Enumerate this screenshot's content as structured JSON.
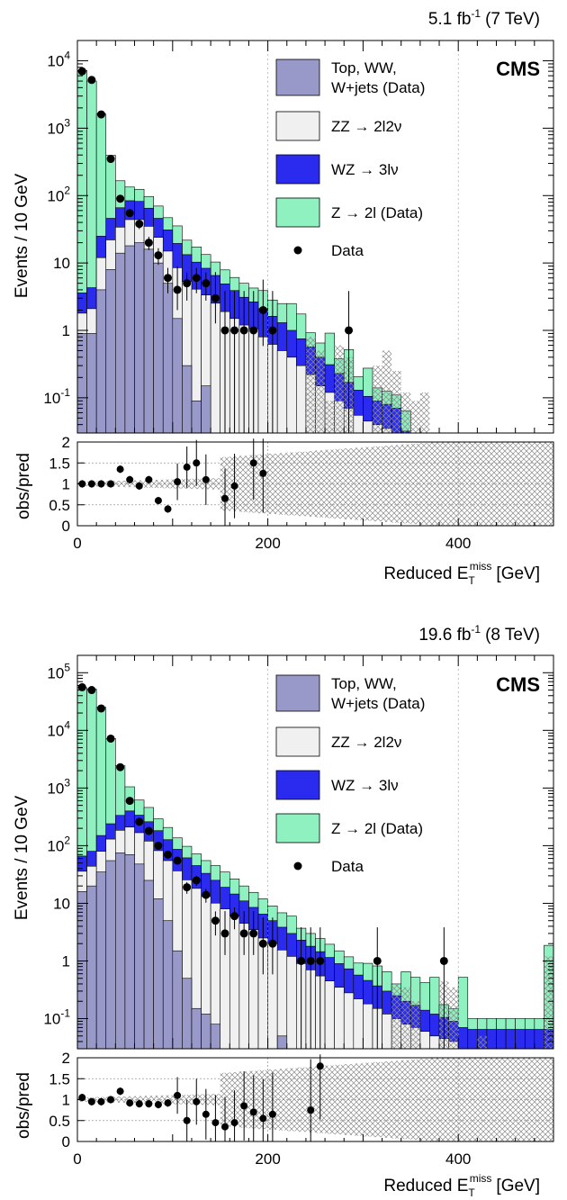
{
  "colors": {
    "top_ww_wjets": "#9999c9",
    "zz": "#f0f0f0",
    "wz": "#2b2bf0",
    "z_dy": "#8ff0c0",
    "data": "#000000",
    "hatch": "#8a8a8a",
    "grid": "#9a9a9a"
  },
  "chart_data": [
    {
      "type": "histogram-stack",
      "lumi_label": "5.1 fb",
      "lumi_exp": "-1",
      "energy_label": "(7 TeV)",
      "experiment": "CMS",
      "ylabel": "Events / 10 GeV",
      "ratio_ylabel": "obs/pred",
      "xlabel_main": "Reduced E",
      "xlabel_sub": "T",
      "xlabel_sup": "miss",
      "xlabel_unit": "[GeV]",
      "xlim": [
        0,
        500
      ],
      "ylim": [
        0.03,
        20000
      ],
      "ylog": true,
      "yticks": [
        {
          "v": 10000,
          "b": "10",
          "e": "4"
        },
        {
          "v": 1000,
          "b": "10",
          "e": "3"
        },
        {
          "v": 100,
          "b": "10",
          "e": "2"
        },
        {
          "v": 10,
          "b": "10",
          "e": ""
        },
        {
          "v": 1,
          "b": "1",
          "e": ""
        },
        {
          "v": 0.1,
          "b": "10",
          "e": "-1"
        }
      ],
      "xticks": [
        "0",
        "200",
        "400"
      ],
      "ratio_ylim": [
        0,
        2
      ],
      "ratio_yticks": [
        "0",
        "0.5",
        "1",
        "1.5",
        "2"
      ],
      "legend": [
        {
          "key": "top_ww_wjets",
          "lines": [
            "Top, WW,",
            "W+jets (Data)"
          ]
        },
        {
          "key": "zz",
          "lines": [
            "ZZ → 2l2ν"
          ]
        },
        {
          "key": "wz",
          "lines": [
            "WZ → 3lν"
          ]
        },
        {
          "key": "z_dy",
          "lines": [
            "Z → 2l (Data)"
          ]
        },
        {
          "key": "data",
          "lines": [
            "Data"
          ]
        }
      ],
      "bin_width": 10,
      "stack": {
        "top_ww_wjets": [
          0.9,
          0.9,
          4,
          8,
          14,
          18,
          20,
          16,
          10,
          5,
          1.5,
          0.3,
          0.09,
          0.15,
          0.03,
          0
        ],
        "zz": [
          0.9,
          1.2,
          8,
          14,
          20,
          26,
          24,
          19,
          14,
          10,
          7,
          5,
          4,
          3.2,
          2.5,
          1.9,
          1.5,
          1.2,
          1.05,
          0.8,
          0.62,
          0.5,
          0.4,
          0.3,
          0.22,
          0.15,
          0.12,
          0.09,
          0.07,
          0.055,
          0.045,
          0.04,
          0.035,
          0.03
        ],
        "wz": [
          1.8,
          2.2,
          13,
          24,
          32,
          40,
          38,
          30,
          22,
          16,
          11,
          8,
          6.2,
          5,
          4,
          3,
          2.4,
          1.9,
          1.6,
          1.3,
          1.0,
          0.8,
          0.6,
          0.45,
          0.35,
          0.25,
          0.19,
          0.14,
          0.1,
          0.075,
          0.06,
          0.05,
          0.045,
          0.04,
          0.032
        ],
        "z_dy": [
          7200,
          5000,
          1600,
          350,
          100,
          50,
          42,
          32,
          24,
          16,
          16,
          8.5,
          7,
          5,
          3.8,
          3,
          2.2,
          1.9,
          1.6,
          1.8,
          1.2,
          1.2,
          1.5,
          1.0,
          0.35,
          0.25,
          0.6,
          0.15,
          0.35,
          0.075,
          0.17,
          0.05,
          0.045,
          0.04,
          0.032
        ]
      },
      "hatch_bins": [
        {
          "x": 240,
          "y": 0.8
        },
        {
          "x": 250,
          "y": 0.5
        },
        {
          "x": 260,
          "y": 0.09
        },
        {
          "x": 270,
          "y": 0.6
        },
        {
          "x": 280,
          "y": 0.4
        },
        {
          "x": 310,
          "y": 0.3
        },
        {
          "x": 320,
          "y": 0.5
        },
        {
          "x": 330,
          "y": 0.25
        },
        {
          "x": 340,
          "y": 0.12
        },
        {
          "x": 350,
          "y": 0.09
        },
        {
          "x": 360,
          "y": 0.12
        }
      ],
      "data_points": [
        {
          "x": 5,
          "y": 7000
        },
        {
          "x": 15,
          "y": 5200
        },
        {
          "x": 25,
          "y": 1600
        },
        {
          "x": 35,
          "y": 350
        },
        {
          "x": 45,
          "y": 90
        },
        {
          "x": 55,
          "y": 55
        },
        {
          "x": 65,
          "y": 38
        },
        {
          "x": 75,
          "y": 20
        },
        {
          "x": 85,
          "y": 13
        },
        {
          "x": 95,
          "y": 6
        },
        {
          "x": 105,
          "y": 4
        },
        {
          "x": 115,
          "y": 5
        },
        {
          "x": 125,
          "y": 6
        },
        {
          "x": 135,
          "y": 5
        },
        {
          "x": 145,
          "y": 3
        },
        {
          "x": 155,
          "y": 1
        },
        {
          "x": 165,
          "y": 1
        },
        {
          "x": 175,
          "y": 1
        },
        {
          "x": 185,
          "y": 1
        },
        {
          "x": 195,
          "y": 2
        },
        {
          "x": 205,
          "y": 1
        },
        {
          "x": 285,
          "y": 1
        }
      ],
      "ratio_points": [
        {
          "x": 5,
          "y": 1.0
        },
        {
          "x": 15,
          "y": 1.0
        },
        {
          "x": 25,
          "y": 1.0
        },
        {
          "x": 35,
          "y": 1.0
        },
        {
          "x": 45,
          "y": 1.35
        },
        {
          "x": 55,
          "y": 1.1
        },
        {
          "x": 65,
          "y": 0.95
        },
        {
          "x": 75,
          "y": 1.1
        },
        {
          "x": 85,
          "y": 0.6
        },
        {
          "x": 95,
          "y": 0.4
        },
        {
          "x": 105,
          "y": 1.05
        },
        {
          "x": 115,
          "y": 1.4
        },
        {
          "x": 125,
          "y": 1.5
        },
        {
          "x": 135,
          "y": 1.1
        },
        {
          "x": 155,
          "y": 0.65
        },
        {
          "x": 165,
          "y": 0.95
        },
        {
          "x": 185,
          "y": 1.5
        },
        {
          "x": 195,
          "y": 1.25
        }
      ]
    },
    {
      "type": "histogram-stack",
      "lumi_label": "19.6 fb",
      "lumi_exp": "-1",
      "energy_label": "(8 TeV)",
      "experiment": "CMS",
      "ylabel": "Events / 10 GeV",
      "ratio_ylabel": "obs/pred",
      "xlabel_main": "Reduced E",
      "xlabel_sub": "T",
      "xlabel_sup": "miss",
      "xlabel_unit": "[GeV]",
      "xlim": [
        0,
        500
      ],
      "ylim": [
        0.03,
        200000
      ],
      "ylog": true,
      "yticks": [
        {
          "v": 100000,
          "b": "10",
          "e": "5"
        },
        {
          "v": 10000,
          "b": "10",
          "e": "4"
        },
        {
          "v": 1000,
          "b": "10",
          "e": "3"
        },
        {
          "v": 100,
          "b": "10",
          "e": "2"
        },
        {
          "v": 10,
          "b": "10",
          "e": ""
        },
        {
          "v": 1,
          "b": "1",
          "e": ""
        },
        {
          "v": 0.1,
          "b": "10",
          "e": "-1"
        }
      ],
      "xticks": [
        "0",
        "200",
        "400"
      ],
      "ratio_ylim": [
        0,
        2
      ],
      "ratio_yticks": [
        "0",
        "0.5",
        "1",
        "1.5",
        "2"
      ],
      "legend": [
        {
          "key": "top_ww_wjets",
          "lines": [
            "Top, WW,",
            "W+jets (Data)"
          ]
        },
        {
          "key": "zz",
          "lines": [
            "ZZ → 2l2ν"
          ]
        },
        {
          "key": "wz",
          "lines": [
            "WZ → 3lν"
          ]
        },
        {
          "key": "z_dy",
          "lines": [
            "Z → 2l (Data)"
          ]
        },
        {
          "key": "data",
          "lines": [
            "Data"
          ]
        }
      ],
      "bin_width": 10,
      "stack": {
        "top_ww_wjets": [
          16,
          20,
          35,
          55,
          75,
          70,
          48,
          25,
          12,
          5,
          1.5,
          0.5,
          0.15,
          0.12,
          0.08,
          0,
          0,
          0,
          0,
          0,
          0,
          0.05,
          0
        ],
        "zz": [
          20,
          24,
          45,
          75,
          110,
          140,
          120,
          95,
          70,
          50,
          35,
          25,
          18,
          13,
          10,
          8,
          6,
          4.5,
          3.5,
          2.5,
          2,
          1.5,
          1.2,
          0.9,
          0.7,
          0.55,
          0.45,
          0.35,
          0.28,
          0.22,
          0.18,
          0.15,
          0.12,
          0.1,
          0.08,
          0.07,
          0.06,
          0.05,
          0.045,
          0.04,
          0.03,
          0.03,
          0.03,
          0.03,
          0.03,
          0.03,
          0.03,
          0.03,
          0.03,
          0.03
        ],
        "wz": [
          30,
          36,
          70,
          110,
          150,
          190,
          170,
          140,
          100,
          72,
          50,
          36,
          27,
          20,
          15,
          11,
          8.5,
          6.5,
          5,
          4,
          3,
          2.3,
          1.8,
          1.4,
          1.1,
          0.9,
          0.7,
          0.55,
          0.45,
          0.35,
          0.28,
          0.22,
          0.18,
          0.15,
          0.12,
          0.1,
          0.08,
          0.07,
          0.06,
          0.05,
          0.04,
          0.035,
          0.035,
          0.035,
          0.035,
          0.035,
          0.035,
          0.035,
          0.035,
          0.035
        ],
        "z_dy": [
          55000,
          52000,
          25000,
          7000,
          2100,
          650,
          280,
          200,
          110,
          80,
          50,
          36,
          27,
          22,
          20,
          16,
          12,
          9,
          7,
          5.5,
          4,
          3,
          3,
          1.4,
          1.2,
          1.0,
          0.8,
          0.6,
          0.45,
          0.35,
          0.45,
          0.45,
          0.35,
          0.15,
          0.45,
          0.35,
          0.28,
          0.4,
          0.07,
          0.06,
          0.45,
          0.035,
          0.035,
          0.035,
          0.035,
          0.035,
          0.035,
          0.035,
          0.035,
          1.8
        ]
      },
      "hatch_bins": [
        {
          "x": 330,
          "y": 0.4
        },
        {
          "x": 340,
          "y": 0.35
        },
        {
          "x": 350,
          "y": 0.2
        },
        {
          "x": 380,
          "y": 0.45
        },
        {
          "x": 390,
          "y": 0.35
        },
        {
          "x": 420,
          "y": 0.05
        },
        {
          "x": 490,
          "y": 1.2
        }
      ],
      "data_points": [
        {
          "x": 5,
          "y": 56000
        },
        {
          "x": 15,
          "y": 50000
        },
        {
          "x": 25,
          "y": 24000
        },
        {
          "x": 35,
          "y": 7200
        },
        {
          "x": 45,
          "y": 2300
        },
        {
          "x": 55,
          "y": 600
        },
        {
          "x": 65,
          "y": 260
        },
        {
          "x": 75,
          "y": 180
        },
        {
          "x": 85,
          "y": 100
        },
        {
          "x": 95,
          "y": 70
        },
        {
          "x": 105,
          "y": 55
        },
        {
          "x": 115,
          "y": 19
        },
        {
          "x": 125,
          "y": 25
        },
        {
          "x": 135,
          "y": 14
        },
        {
          "x": 145,
          "y": 5
        },
        {
          "x": 155,
          "y": 3
        },
        {
          "x": 165,
          "y": 6
        },
        {
          "x": 175,
          "y": 3
        },
        {
          "x": 185,
          "y": 3
        },
        {
          "x": 195,
          "y": 2
        },
        {
          "x": 205,
          "y": 2
        },
        {
          "x": 235,
          "y": 1
        },
        {
          "x": 245,
          "y": 1
        },
        {
          "x": 255,
          "y": 1
        },
        {
          "x": 315,
          "y": 1
        },
        {
          "x": 385,
          "y": 1
        }
      ],
      "ratio_points": [
        {
          "x": 5,
          "y": 1.05
        },
        {
          "x": 15,
          "y": 0.95
        },
        {
          "x": 25,
          "y": 0.95
        },
        {
          "x": 35,
          "y": 1.0
        },
        {
          "x": 45,
          "y": 1.2
        },
        {
          "x": 55,
          "y": 0.92
        },
        {
          "x": 65,
          "y": 0.9
        },
        {
          "x": 75,
          "y": 0.9
        },
        {
          "x": 85,
          "y": 0.88
        },
        {
          "x": 95,
          "y": 0.92
        },
        {
          "x": 105,
          "y": 1.1
        },
        {
          "x": 115,
          "y": 0.5
        },
        {
          "x": 125,
          "y": 0.95
        },
        {
          "x": 135,
          "y": 0.65
        },
        {
          "x": 145,
          "y": 0.45
        },
        {
          "x": 155,
          "y": 0.35
        },
        {
          "x": 165,
          "y": 0.45
        },
        {
          "x": 175,
          "y": 0.85
        },
        {
          "x": 185,
          "y": 0.7
        },
        {
          "x": 195,
          "y": 0.55
        },
        {
          "x": 205,
          "y": 0.65
        },
        {
          "x": 245,
          "y": 0.75
        },
        {
          "x": 255,
          "y": 1.8
        }
      ]
    }
  ]
}
